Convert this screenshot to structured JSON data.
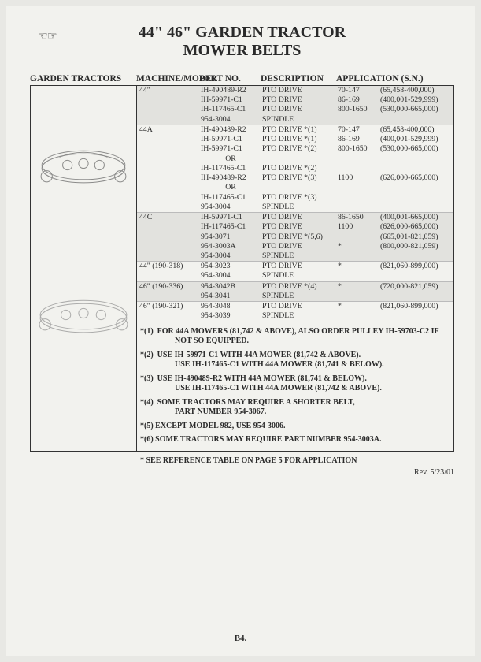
{
  "title_line1": "44\" 46\" GARDEN TRACTOR",
  "title_line2": "MOWER BELTS",
  "section_label": "GARDEN TRACTORS",
  "columns": {
    "mm": "MACHINE/MODEL",
    "part": "PART NO.",
    "desc": "DESCRIPTION",
    "app": "APPLICATION (S.N.)"
  },
  "groups": [
    {
      "shade": true,
      "model": "44\"",
      "rows": [
        {
          "part": "IH-490489-R2",
          "desc": "PTO DRIVE",
          "sn1": "70-147",
          "sn2": "(65,458-400,000)"
        },
        {
          "part": "IH-59971-C1",
          "desc": "PTO DRIVE",
          "sn1": "86-169",
          "sn2": "(400,001-529,999)"
        },
        {
          "part": "IH-117465-C1",
          "desc": "PTO DRIVE",
          "sn1": "800-1650",
          "sn2": "(530,000-665,000)"
        },
        {
          "part": "954-3004",
          "desc": "SPINDLE",
          "sn1": "",
          "sn2": ""
        }
      ]
    },
    {
      "shade": false,
      "model": "44A",
      "rows": [
        {
          "part": "IH-490489-R2",
          "desc": "PTO DRIVE  *(1)",
          "sn1": "70-147",
          "sn2": "(65,458-400,000)"
        },
        {
          "part": "IH-59971-C1",
          "desc": "PTO DRIVE  *(1)",
          "sn1": "86-169",
          "sn2": "(400,001-529,999)"
        },
        {
          "part": "IH-59971-C1",
          "desc": "PTO DRIVE  *(2)",
          "sn1": "800-1650",
          "sn2": "(530,000-665,000)"
        },
        {
          "part": "OR",
          "desc": "",
          "sn1": "",
          "sn2": ""
        },
        {
          "part": "IH-117465-C1",
          "desc": "PTO DRIVE  *(2)",
          "sn1": "",
          "sn2": ""
        },
        {
          "part": "IH-490489-R2",
          "desc": "PTO DRIVE  *(3)",
          "sn1": "1100",
          "sn2": "(626,000-665,000)"
        },
        {
          "part": "OR",
          "desc": "",
          "sn1": "",
          "sn2": ""
        },
        {
          "part": "IH-117465-C1",
          "desc": "PTO DRIVE  *(3)",
          "sn1": "",
          "sn2": ""
        },
        {
          "part": "954-3004",
          "desc": "SPINDLE",
          "sn1": "",
          "sn2": ""
        }
      ]
    },
    {
      "shade": true,
      "model": "44C",
      "rows": [
        {
          "part": "IH-59971-C1",
          "desc": "PTO DRIVE",
          "sn1": "86-1650",
          "sn2": "(400,001-665,000)"
        },
        {
          "part": "IH-117465-C1",
          "desc": "PTO DRIVE",
          "sn1": "1100",
          "sn2": "(626,000-665,000)"
        },
        {
          "part": "954-3071",
          "desc": "PTO DRIVE  *(5,6)",
          "sn1": "",
          "sn2": "(665,001-821,059)"
        },
        {
          "part": "954-3003A",
          "desc": "PTO DRIVE",
          "sn1": "*",
          "sn2": "(800,000-821,059)"
        },
        {
          "part": "954-3004",
          "desc": "SPINDLE",
          "sn1": "",
          "sn2": ""
        }
      ]
    },
    {
      "shade": false,
      "model": "44\"   (190-318)",
      "rows": [
        {
          "part": "954-3023",
          "desc": "PTO DRIVE",
          "sn1": "*",
          "sn2": "(821,060-899,000)"
        },
        {
          "part": "954-3004",
          "desc": "SPINDLE",
          "sn1": "",
          "sn2": ""
        }
      ]
    },
    {
      "shade": true,
      "model": "46\"   (190-336)",
      "rows": [
        {
          "part": "954-3042B",
          "desc": "PTO DRIVE  *(4)",
          "sn1": "*",
          "sn2": "(720,000-821,059)"
        },
        {
          "part": "954-3041",
          "desc": "SPINDLE",
          "sn1": "",
          "sn2": ""
        }
      ]
    },
    {
      "shade": false,
      "model": "46\"   (190-321)",
      "rows": [
        {
          "part": "954-3048",
          "desc": "PTO DRIVE",
          "sn1": "*",
          "sn2": "(821,060-899,000)"
        },
        {
          "part": "954-3039",
          "desc": "SPINDLE",
          "sn1": "",
          "sn2": ""
        }
      ]
    }
  ],
  "notes": [
    "*(1)  FOR 44A MOWERS (81,742 & ABOVE), ALSO ORDER PULLEY IH-59703-C2 IF NOT SO EQUIPPED.",
    "*(2)  USE IH-59971-C1 WITH 44A MOWER (81,742 & ABOVE). USE IH-117465-C1 WITH 44A MOWER (81,741 & BELOW).",
    "*(3)  USE IH-490489-R2 WITH 44A MOWER (81,741 & BELOW). USE IH-117465-C1 WITH 44A MOWER (81,742 & ABOVE).",
    "*(4)  SOME TRACTORS MAY REQUIRE A SHORTER BELT, PART NUMBER 954-3067.",
    "*(5)  EXCEPT MODEL 982, USE 954-3006.",
    "*(6)  SOME TRACTORS MAY REQUIRE PART NUMBER 954-3003A."
  ],
  "ref_note": "* SEE REFERENCE TABLE ON PAGE 5 FOR APPLICATION",
  "rev": "Rev. 5/23/01",
  "page_no": "B4."
}
